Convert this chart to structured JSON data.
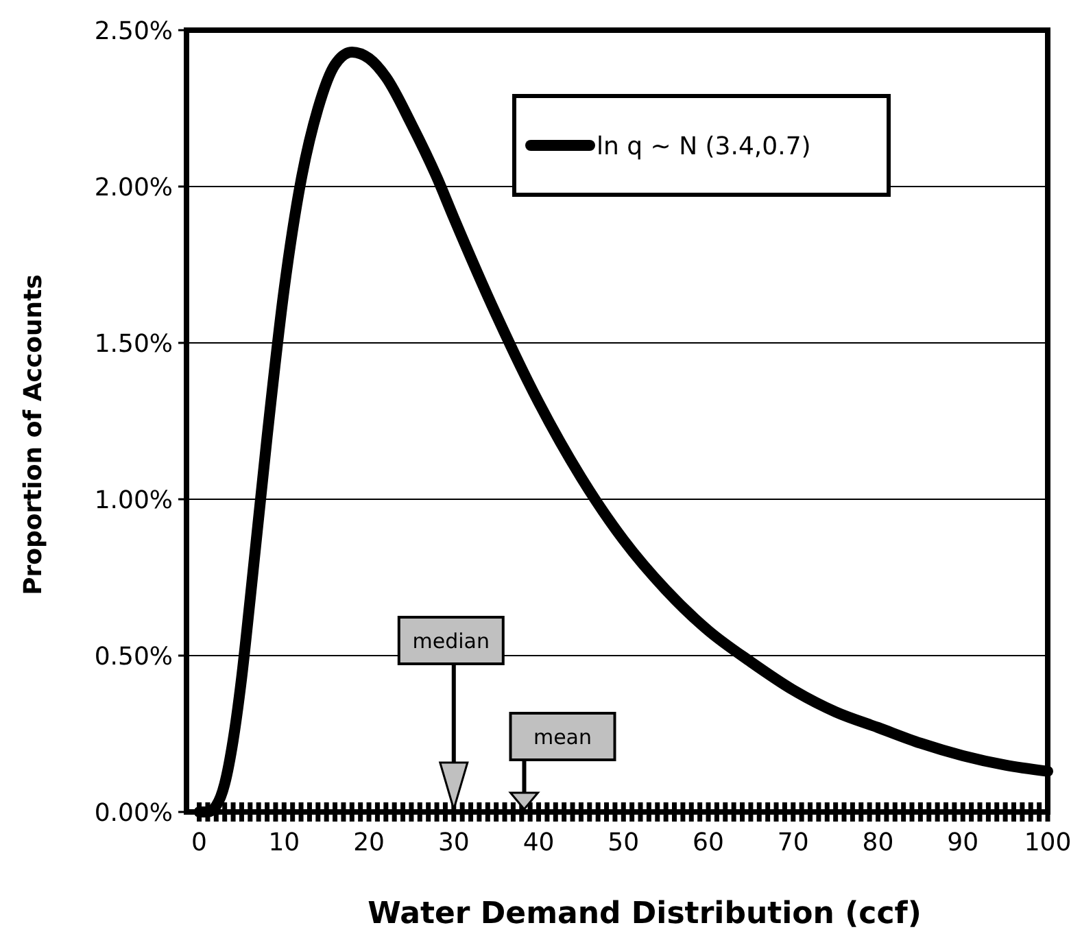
{
  "chart_data": {
    "type": "line",
    "xlabel": "Water Demand Distribution (ccf)",
    "ylabel": "Proportion of Accounts",
    "x": [
      0,
      1,
      2,
      3,
      4,
      5,
      6,
      8,
      10,
      12,
      14,
      16,
      18,
      20,
      22,
      25,
      28,
      30,
      35,
      40,
      45,
      50,
      55,
      60,
      65,
      70,
      75,
      80,
      85,
      90,
      95,
      100
    ],
    "series": [
      {
        "name": "ln q ~ N (3.4,0.7)",
        "color": "#000000",
        "values": [
          0,
          0,
          0.02,
          0.09,
          0.23,
          0.43,
          0.68,
          1.2,
          1.67,
          2.02,
          2.25,
          2.39,
          2.43,
          2.41,
          2.35,
          2.2,
          2.03,
          1.9,
          1.59,
          1.31,
          1.07,
          0.87,
          0.71,
          0.58,
          0.48,
          0.39,
          0.32,
          0.27,
          0.22,
          0.18,
          0.15,
          0.13
        ]
      }
    ],
    "xlim": [
      -1.5,
      100
    ],
    "xticks": [
      0,
      {
        "value": 1,
        "label": null
      },
      {
        "value": 2,
        "label": null
      },
      {
        "value": 3,
        "label": null
      },
      {
        "value": 4,
        "label": null
      },
      {
        "value": 5,
        "label": null
      },
      {
        "value": 6,
        "label": null
      },
      {
        "value": 7,
        "label": null
      },
      {
        "value": 8,
        "label": null
      },
      {
        "value": 9,
        "label": null
      },
      10,
      {
        "value": 11,
        "label": null
      },
      {
        "value": 12,
        "label": null
      },
      {
        "value": 13,
        "label": null
      },
      {
        "value": 14,
        "label": null
      },
      {
        "value": 15,
        "label": null
      },
      {
        "value": 16,
        "label": null
      },
      {
        "value": 17,
        "label": null
      },
      {
        "value": 18,
        "label": null
      },
      {
        "value": 19,
        "label": null
      },
      20,
      {
        "value": 21,
        "label": null
      },
      {
        "value": 22,
        "label": null
      },
      {
        "value": 23,
        "label": null
      },
      {
        "value": 24,
        "label": null
      },
      {
        "value": 25,
        "label": null
      },
      {
        "value": 26,
        "label": null
      },
      {
        "value": 27,
        "label": null
      },
      {
        "value": 28,
        "label": null
      },
      {
        "value": 29,
        "label": null
      },
      30,
      {
        "value": 31,
        "label": null
      },
      {
        "value": 32,
        "label": null
      },
      {
        "value": 33,
        "label": null
      },
      {
        "value": 34,
        "label": null
      },
      {
        "value": 35,
        "label": null
      },
      {
        "value": 36,
        "label": null
      },
      {
        "value": 37,
        "label": null
      },
      {
        "value": 38,
        "label": null
      },
      {
        "value": 39,
        "label": null
      },
      40,
      {
        "value": 41,
        "label": null
      },
      {
        "value": 42,
        "label": null
      },
      {
        "value": 43,
        "label": null
      },
      {
        "value": 44,
        "label": null
      },
      {
        "value": 45,
        "label": null
      },
      {
        "value": 46,
        "label": null
      },
      {
        "value": 47,
        "label": null
      },
      {
        "value": 48,
        "label": null
      },
      {
        "value": 49,
        "label": null
      },
      50,
      {
        "value": 51,
        "label": null
      },
      {
        "value": 52,
        "label": null
      },
      {
        "value": 53,
        "label": null
      },
      {
        "value": 54,
        "label": null
      },
      {
        "value": 55,
        "label": null
      },
      {
        "value": 56,
        "label": null
      },
      {
        "value": 57,
        "label": null
      },
      {
        "value": 58,
        "label": null
      },
      {
        "value": 59,
        "label": null
      },
      60,
      {
        "value": 61,
        "label": null
      },
      {
        "value": 62,
        "label": null
      },
      {
        "value": 63,
        "label": null
      },
      {
        "value": 64,
        "label": null
      },
      {
        "value": 65,
        "label": null
      },
      {
        "value": 66,
        "label": null
      },
      {
        "value": 67,
        "label": null
      },
      {
        "value": 68,
        "label": null
      },
      {
        "value": 69,
        "label": null
      },
      70,
      {
        "value": 71,
        "label": null
      },
      {
        "value": 72,
        "label": null
      },
      {
        "value": 73,
        "label": null
      },
      {
        "value": 74,
        "label": null
      },
      {
        "value": 75,
        "label": null
      },
      {
        "value": 76,
        "label": null
      },
      {
        "value": 77,
        "label": null
      },
      {
        "value": 78,
        "label": null
      },
      {
        "value": 79,
        "label": null
      },
      80,
      {
        "value": 81,
        "label": null
      },
      {
        "value": 82,
        "label": null
      },
      {
        "value": 83,
        "label": null
      },
      {
        "value": 84,
        "label": null
      },
      {
        "value": 85,
        "label": null
      },
      {
        "value": 86,
        "label": null
      },
      {
        "value": 87,
        "label": null
      },
      {
        "value": 88,
        "label": null
      },
      {
        "value": 89,
        "label": null
      },
      90,
      {
        "value": 91,
        "label": null
      },
      {
        "value": 92,
        "label": null
      },
      {
        "value": 93,
        "label": null
      },
      {
        "value": 94,
        "label": null
      },
      {
        "value": 95,
        "label": null
      },
      {
        "value": 96,
        "label": null
      },
      {
        "value": 97,
        "label": null
      },
      {
        "value": 98,
        "label": null
      },
      {
        "value": 99,
        "label": null
      },
      100
    ],
    "ylim": [
      0,
      2.5
    ],
    "yticks": [
      {
        "value": 0,
        "label": "0.00%"
      },
      {
        "value": 0.5,
        "label": "0.50%"
      },
      {
        "value": 1,
        "label": "1.00%"
      },
      {
        "value": 1.5,
        "label": "1.50%"
      },
      {
        "value": 2,
        "label": "2.00%"
      },
      {
        "value": 2.5,
        "label": "2.50%"
      }
    ],
    "grid": "y",
    "legend": "top right",
    "marker": "none",
    "line_style": "solid",
    "ref_lines": [
      {
        "axis": "x",
        "value": 30,
        "label": "median"
      },
      {
        "axis": "x",
        "value": 38.3,
        "label": "mean"
      }
    ]
  }
}
